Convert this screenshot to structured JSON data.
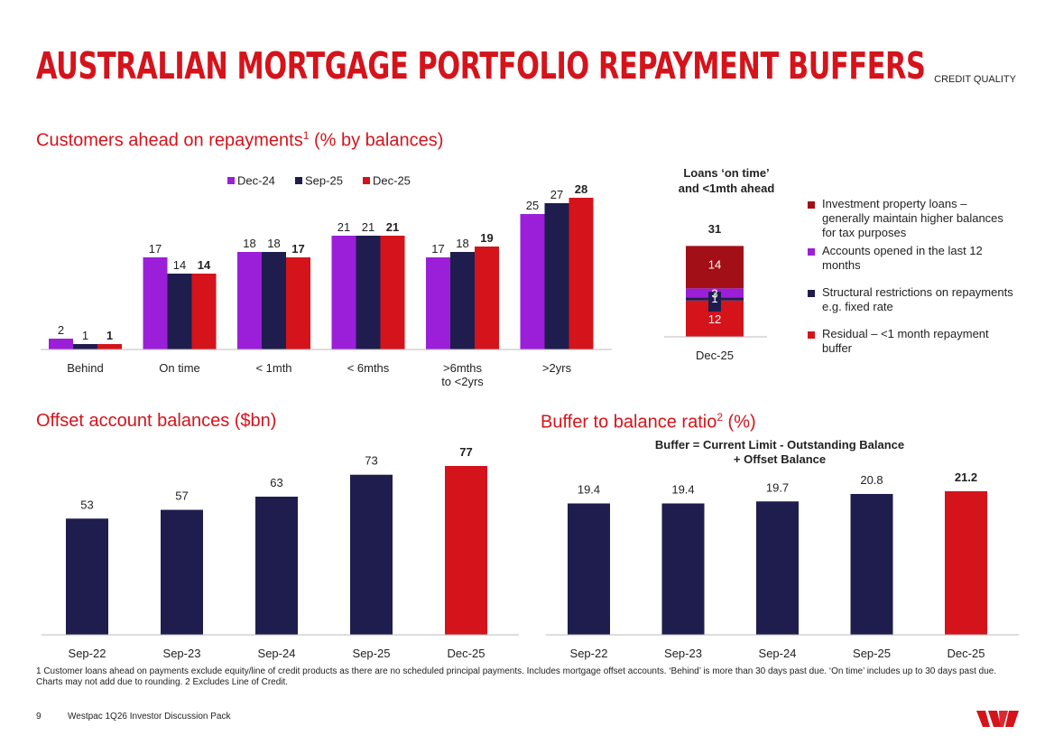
{
  "header": {
    "title": "AUSTRALIAN MORTGAGE PORTFOLIO REPAYMENT BUFFERS",
    "section_tag": "CREDIT QUALITY"
  },
  "customers_ahead": {
    "title_main": "Customers ahead on repayments",
    "title_sup": "1",
    "title_suffix": " (% by balances)"
  },
  "on_time_breakdown": {
    "title_line1": "Loans ‘on time’",
    "title_line2": "and <1mth ahead",
    "legend": [
      {
        "label": "Investment property loans – generally maintain higher balances for tax purposes",
        "color": "#a30f16"
      },
      {
        "label": "Accounts opened in the last 12 months",
        "color": "#9b1fd8"
      },
      {
        "label": "Structural restrictions on repayments e.g. fixed rate",
        "color": "#1f1d4e"
      },
      {
        "label": "Residual – <1 month repayment buffer",
        "color": "#d5131b"
      }
    ]
  },
  "offset": {
    "title": "Offset account balances ($bn)"
  },
  "buffer": {
    "title_main": "Buffer to balance ratio",
    "title_sup": "2",
    "title_suffix": " (%)",
    "formula_line1": "Buffer = Current Limit - Outstanding Balance",
    "formula_line2": "+ Offset Balance"
  },
  "footer": {
    "footnote": "1 Customer loans ahead on payments exclude equity/line of credit products as there are no scheduled principal payments. Includes mortgage offset accounts. ‘Behind’ is more than 30 days past due. ‘On time’ includes up to 30 days past due. Charts may not add due to rounding. 2 Excludes Line of Credit.",
    "page_number": "9",
    "document_name": "Westpac 1Q26 Investor Discussion Pack"
  },
  "colors": {
    "brand_red": "#d5131b",
    "purple": "#9b1fd8",
    "navy": "#1f1d4e",
    "dark_red": "#a30f16"
  },
  "chart_data": [
    {
      "id": "customers",
      "type": "bar",
      "title": "Customers ahead on repayments (% by balances)",
      "categories": [
        [
          "Behind"
        ],
        [
          "On time"
        ],
        [
          "< 1mth"
        ],
        [
          "< 6mths"
        ],
        [
          ">6mths",
          "to <2yrs"
        ],
        [
          ">2yrs"
        ]
      ],
      "series": [
        {
          "name": "Dec-24",
          "color": "#9b1fd8",
          "values": [
            2,
            17,
            18,
            21,
            17,
            25
          ],
          "labels": [
            "2",
            "17",
            "18",
            "21",
            "17",
            "25"
          ],
          "bold": false
        },
        {
          "name": "Sep-25",
          "color": "#1f1d4e",
          "values": [
            1,
            14,
            18,
            21,
            18,
            27
          ],
          "labels": [
            "1",
            "14",
            "18",
            "21",
            "18",
            "27"
          ],
          "bold": false
        },
        {
          "name": "Dec-25",
          "color": "#d5131b",
          "values": [
            1,
            14,
            17,
            21,
            19,
            28
          ],
          "labels": [
            "1",
            "14",
            "17",
            "21",
            "19",
            "28"
          ],
          "bold": true
        }
      ],
      "ylim": [
        0,
        28
      ]
    },
    {
      "id": "ontime",
      "type": "stacked_bar",
      "category": "Dec-25",
      "total": 31,
      "total_label": "31",
      "segments": [
        {
          "name": "Residual",
          "value": 12,
          "label": "12",
          "color": "#d5131b"
        },
        {
          "name": "Structural restrictions",
          "value": 1,
          "label": "1",
          "color": "#1f1d4e"
        },
        {
          "name": "Accounts opened in the last 12 months",
          "value": 3,
          "label": "3",
          "color": "#9b1fd8"
        },
        {
          "name": "Investment property loans",
          "value": 14,
          "label": "14",
          "color": "#a30f16"
        }
      ],
      "ylim": [
        0,
        31
      ]
    },
    {
      "id": "offset",
      "type": "bar",
      "title": "Offset account balances ($bn)",
      "categories": [
        "Sep-22",
        "Sep-23",
        "Sep-24",
        "Sep-25",
        "Dec-25"
      ],
      "values": [
        53,
        57,
        63,
        73,
        77
      ],
      "labels": [
        "53",
        "57",
        "63",
        "73",
        "77"
      ],
      "colors": [
        "#1f1d4e",
        "#1f1d4e",
        "#1f1d4e",
        "#1f1d4e",
        "#d5131b"
      ],
      "bold": [
        false,
        false,
        false,
        false,
        true
      ],
      "ylim": [
        0,
        77
      ]
    },
    {
      "id": "buffer",
      "type": "bar",
      "title": "Buffer to balance ratio (%)",
      "categories": [
        "Sep-22",
        "Sep-23",
        "Sep-24",
        "Sep-25",
        "Dec-25"
      ],
      "values": [
        19.4,
        19.4,
        19.7,
        20.8,
        21.2
      ],
      "labels": [
        "19.4",
        "19.4",
        "19.7",
        "20.8",
        "21.2"
      ],
      "colors": [
        "#1f1d4e",
        "#1f1d4e",
        "#1f1d4e",
        "#1f1d4e",
        "#d5131b"
      ],
      "bold": [
        false,
        false,
        false,
        false,
        true
      ],
      "ylim": [
        0,
        21.2
      ]
    }
  ]
}
